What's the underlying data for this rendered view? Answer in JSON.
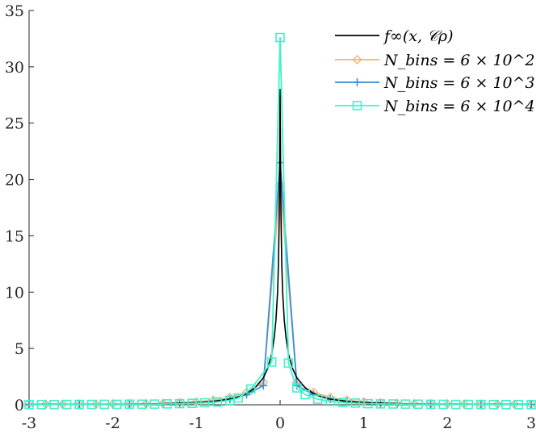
{
  "chart_data": {
    "type": "line",
    "title": "",
    "xlabel": "",
    "ylabel": "",
    "xlim": [
      -3,
      3
    ],
    "ylim": [
      0,
      35
    ],
    "xticks": [
      -3,
      -2,
      -1,
      0,
      1,
      2,
      3
    ],
    "yticks": [
      0,
      5,
      10,
      15,
      20,
      25,
      30,
      35
    ],
    "xtick_labels": [
      "-3",
      "-2",
      "-1",
      "0",
      "1",
      "2",
      "3"
    ],
    "ytick_labels": [
      "0",
      "5",
      "10",
      "15",
      "20",
      "25",
      "30",
      "35"
    ],
    "grid": false,
    "legend_position": "top-right",
    "series": [
      {
        "name": "f∞(x, 𝒞ρ)",
        "color": "#000000",
        "marker": "none",
        "x": [
          -3,
          -2,
          -1.5,
          -1,
          -0.8,
          -0.6,
          -0.5,
          -0.4,
          -0.3,
          -0.2,
          -0.15,
          -0.1,
          -0.07,
          -0.05,
          -0.03,
          -0.02,
          -0.01,
          -0.005,
          0,
          0.005,
          0.01,
          0.02,
          0.03,
          0.05,
          0.07,
          0.1,
          0.15,
          0.2,
          0.3,
          0.4,
          0.5,
          0.6,
          0.8,
          1,
          1.5,
          2,
          3
        ],
        "y": [
          0.02,
          0.04,
          0.08,
          0.2,
          0.3,
          0.5,
          0.7,
          1.0,
          1.5,
          2.4,
          3.2,
          4.5,
          6.0,
          7.5,
          10.0,
          12.5,
          17.0,
          22.0,
          28.0,
          22.0,
          17.0,
          12.5,
          10.0,
          7.5,
          6.0,
          4.5,
          3.2,
          2.4,
          1.5,
          1.0,
          0.7,
          0.5,
          0.3,
          0.2,
          0.08,
          0.04,
          0.02
        ]
      },
      {
        "name": "N_bins = 6 × 10^2",
        "color": "#f4b183",
        "marker": "diamond",
        "x": [
          -3,
          -2.8,
          -2.6,
          -2.4,
          -2.2,
          -2,
          -1.8,
          -1.6,
          -1.4,
          -1.2,
          -1,
          -0.8,
          -0.6,
          -0.4,
          -0.2,
          0,
          0.2,
          0.4,
          0.6,
          0.8,
          1,
          1.2,
          1.4,
          1.6,
          1.8,
          2,
          2.2,
          2.4,
          2.6,
          2.8,
          3
        ],
        "y": [
          0.04,
          0.05,
          0.05,
          0.06,
          0.07,
          0.08,
          0.09,
          0.1,
          0.13,
          0.18,
          0.25,
          0.4,
          0.65,
          1.1,
          2.0,
          19.5,
          2.0,
          1.1,
          0.65,
          0.4,
          0.25,
          0.18,
          0.13,
          0.1,
          0.09,
          0.08,
          0.07,
          0.06,
          0.05,
          0.05,
          0.04
        ]
      },
      {
        "name": "N_bins = 6 × 10^3",
        "color": "#3b8fd9",
        "marker": "plus",
        "x": [
          -3,
          -2.8,
          -2.6,
          -2.4,
          -2.2,
          -2,
          -1.8,
          -1.6,
          -1.4,
          -1.2,
          -1,
          -0.8,
          -0.6,
          -0.4,
          -0.2,
          0,
          0.2,
          0.4,
          0.6,
          0.8,
          1,
          1.2,
          1.4,
          1.6,
          1.8,
          2,
          2.2,
          2.4,
          2.6,
          2.8,
          3
        ],
        "y": [
          0.02,
          0.03,
          0.03,
          0.04,
          0.04,
          0.05,
          0.06,
          0.07,
          0.09,
          0.13,
          0.18,
          0.3,
          0.5,
          0.9,
          1.7,
          21.5,
          1.7,
          0.9,
          0.5,
          0.3,
          0.18,
          0.13,
          0.09,
          0.07,
          0.06,
          0.05,
          0.04,
          0.04,
          0.03,
          0.03,
          0.02
        ]
      },
      {
        "name": "N_bins = 6 × 10^4",
        "color": "#3ff2c8",
        "marker": "square",
        "x": [
          -3,
          -2.85,
          -2.7,
          -2.55,
          -2.4,
          -2.25,
          -2.1,
          -1.95,
          -1.8,
          -1.65,
          -1.5,
          -1.35,
          -1.2,
          -1.05,
          -0.9,
          -0.75,
          -0.6,
          -0.5,
          -0.35,
          -0.1,
          0,
          0.1,
          0.2,
          0.3,
          0.45,
          0.6,
          0.75,
          0.9,
          1.05,
          1.2,
          1.35,
          1.5,
          1.65,
          1.8,
          1.95,
          2.1,
          2.25,
          2.4,
          2.55,
          2.7,
          2.85,
          3
        ],
        "y": [
          0.02,
          0.02,
          0.02,
          0.03,
          0.03,
          0.03,
          0.04,
          0.04,
          0.05,
          0.05,
          0.06,
          0.08,
          0.1,
          0.13,
          0.18,
          0.25,
          0.4,
          0.6,
          1.4,
          3.8,
          32.6,
          3.7,
          1.5,
          0.9,
          0.5,
          0.3,
          0.2,
          0.15,
          0.1,
          0.08,
          0.07,
          0.06,
          0.05,
          0.04,
          0.04,
          0.03,
          0.03,
          0.03,
          0.02,
          0.02,
          0.02,
          0.02
        ]
      }
    ]
  }
}
